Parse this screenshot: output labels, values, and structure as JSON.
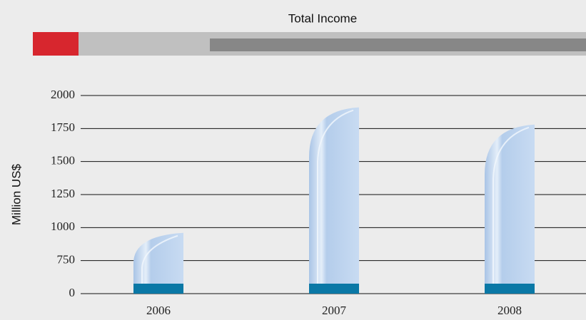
{
  "chart_data": {
    "type": "bar",
    "title": "Total Income",
    "y_label": "Million US$",
    "categories": [
      "2006",
      "2007",
      "2008"
    ],
    "values": [
      960,
      1910,
      1780
    ],
    "color": "#b9d0ec",
    "ylim": [
      0,
      2000
    ],
    "yticks": [
      0,
      750,
      1000,
      1250,
      1500,
      1750,
      2000
    ],
    "grid": true
  }
}
